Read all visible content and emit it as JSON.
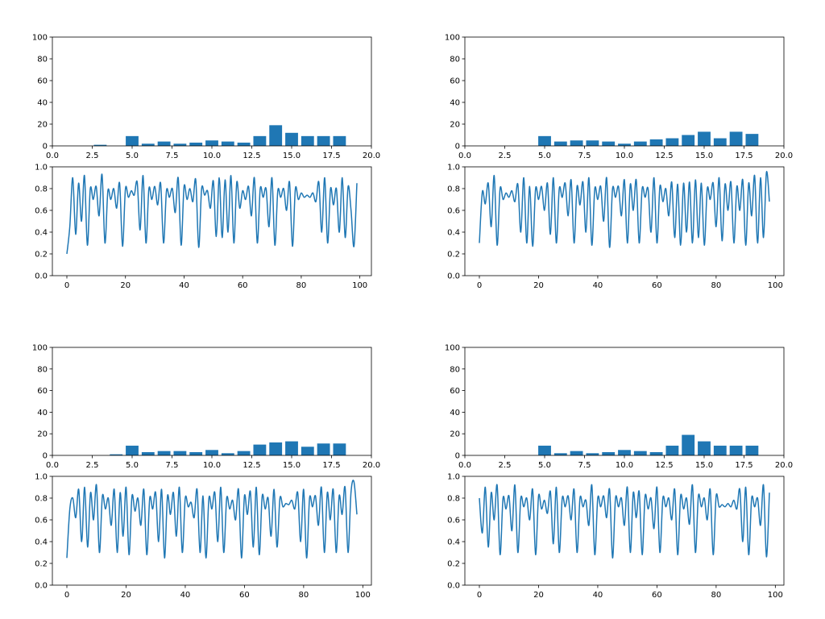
{
  "chart_data": [
    {
      "type": "bar",
      "panel": "top-left-bar",
      "categories": [
        3,
        5,
        6,
        7,
        8,
        9,
        10,
        11,
        12,
        13,
        14,
        15,
        16,
        17,
        18
      ],
      "values": [
        1,
        9,
        2,
        4,
        2,
        3,
        5,
        4,
        3,
        9,
        19,
        12,
        9,
        9,
        9
      ],
      "xlim": [
        0,
        20
      ],
      "ylim": [
        0,
        100
      ],
      "xticks": [
        "0.0",
        "2.5",
        "5.0",
        "7.5",
        "10.0",
        "12.5",
        "15.0",
        "17.5",
        "20.0"
      ],
      "yticks": [
        "0",
        "20",
        "40",
        "60",
        "80",
        "100"
      ],
      "color": "#1f77b4"
    },
    {
      "type": "line",
      "panel": "top-left-line",
      "values": [
        0.2,
        0.45,
        0.9,
        0.38,
        0.85,
        0.5,
        0.92,
        0.28,
        0.8,
        0.7,
        0.82,
        0.55,
        0.93,
        0.3,
        0.78,
        0.7,
        0.8,
        0.62,
        0.85,
        0.27,
        0.8,
        0.72,
        0.78,
        0.74,
        0.86,
        0.42,
        0.92,
        0.3,
        0.8,
        0.7,
        0.82,
        0.65,
        0.85,
        0.3,
        0.78,
        0.72,
        0.8,
        0.58,
        0.9,
        0.28,
        0.82,
        0.7,
        0.8,
        0.68,
        0.88,
        0.26,
        0.8,
        0.74,
        0.78,
        0.62,
        0.87,
        0.36,
        0.9,
        0.35,
        0.88,
        0.4,
        0.92,
        0.3,
        0.86,
        0.62,
        0.78,
        0.7,
        0.82,
        0.55,
        0.9,
        0.3,
        0.8,
        0.72,
        0.8,
        0.45,
        0.9,
        0.28,
        0.78,
        0.72,
        0.8,
        0.6,
        0.86,
        0.27,
        0.8,
        0.7,
        0.76,
        0.72,
        0.74,
        0.72,
        0.76,
        0.68,
        0.86,
        0.4,
        0.9,
        0.3,
        0.8,
        0.65,
        0.8,
        0.4,
        0.9,
        0.35,
        0.82,
        0.6,
        0.27,
        0.85
      ],
      "ylim": [
        0,
        1
      ],
      "xticks": [
        "0",
        "20",
        "40",
        "60",
        "80",
        "100"
      ],
      "yticks": [
        "0.0",
        "0.2",
        "0.4",
        "0.6",
        "0.8",
        "1.0"
      ],
      "color": "#1f77b4"
    },
    {
      "type": "bar",
      "panel": "top-right-bar",
      "categories": [
        5,
        6,
        7,
        8,
        9,
        10,
        11,
        12,
        13,
        14,
        15,
        16,
        17,
        18
      ],
      "values": [
        9,
        4,
        5,
        5,
        4,
        2,
        4,
        6,
        7,
        10,
        13,
        7,
        13,
        11
      ],
      "xlim": [
        0,
        20
      ],
      "ylim": [
        0,
        100
      ],
      "xticks": [
        "0.0",
        "2.5",
        "5.0",
        "7.5",
        "10.0",
        "12.5",
        "15.0",
        "17.5",
        "20.0"
      ],
      "yticks": [
        "0",
        "20",
        "40",
        "60",
        "80",
        "100"
      ],
      "color": "#1f77b4"
    },
    {
      "type": "line",
      "panel": "top-right-line",
      "values": [
        0.3,
        0.77,
        0.66,
        0.85,
        0.45,
        0.92,
        0.28,
        0.8,
        0.7,
        0.76,
        0.72,
        0.78,
        0.68,
        0.84,
        0.4,
        0.9,
        0.3,
        0.82,
        0.27,
        0.8,
        0.7,
        0.82,
        0.6,
        0.85,
        0.38,
        0.9,
        0.3,
        0.8,
        0.72,
        0.85,
        0.55,
        0.88,
        0.3,
        0.82,
        0.65,
        0.86,
        0.4,
        0.9,
        0.28,
        0.8,
        0.7,
        0.82,
        0.5,
        0.9,
        0.26,
        0.8,
        0.72,
        0.82,
        0.55,
        0.88,
        0.3,
        0.84,
        0.6,
        0.88,
        0.3,
        0.8,
        0.72,
        0.8,
        0.4,
        0.9,
        0.3,
        0.82,
        0.68,
        0.8,
        0.55,
        0.86,
        0.35,
        0.84,
        0.28,
        0.85,
        0.4,
        0.86,
        0.3,
        0.88,
        0.35,
        0.85,
        0.28,
        0.8,
        0.7,
        0.85,
        0.45,
        0.9,
        0.32,
        0.84,
        0.6,
        0.86,
        0.3,
        0.82,
        0.6,
        0.88,
        0.28,
        0.85,
        0.55,
        0.92,
        0.3,
        0.9,
        0.35,
        0.95,
        0.68
      ],
      "ylim": [
        0,
        1
      ],
      "xticks": [
        "0",
        "20",
        "40",
        "60",
        "80",
        "100"
      ],
      "yticks": [
        "0.0",
        "0.2",
        "0.4",
        "0.6",
        "0.8",
        "1.0"
      ],
      "color": "#1f77b4"
    },
    {
      "type": "bar",
      "panel": "bottom-left-bar",
      "categories": [
        4,
        5,
        6,
        7,
        8,
        9,
        10,
        11,
        12,
        13,
        14,
        15,
        16,
        17,
        18
      ],
      "values": [
        1,
        9,
        3,
        4,
        4,
        3,
        5,
        2,
        4,
        10,
        12,
        13,
        8,
        11,
        11
      ],
      "xlim": [
        0,
        20
      ],
      "ylim": [
        0,
        100
      ],
      "xticks": [
        "0.0",
        "2.5",
        "5.0",
        "7.5",
        "10.0",
        "12.5",
        "15.0",
        "17.5",
        "20.0"
      ],
      "yticks": [
        "0",
        "20",
        "40",
        "60",
        "80",
        "100"
      ],
      "color": "#1f77b4"
    },
    {
      "type": "line",
      "panel": "bottom-left-line",
      "values": [
        0.25,
        0.7,
        0.8,
        0.62,
        0.88,
        0.4,
        0.9,
        0.35,
        0.85,
        0.6,
        0.92,
        0.3,
        0.82,
        0.7,
        0.8,
        0.55,
        0.88,
        0.3,
        0.85,
        0.45,
        0.9,
        0.28,
        0.82,
        0.68,
        0.8,
        0.55,
        0.88,
        0.28,
        0.8,
        0.7,
        0.85,
        0.4,
        0.88,
        0.25,
        0.82,
        0.65,
        0.85,
        0.45,
        0.9,
        0.3,
        0.8,
        0.72,
        0.76,
        0.62,
        0.88,
        0.3,
        0.82,
        0.25,
        0.8,
        0.7,
        0.85,
        0.4,
        0.9,
        0.3,
        0.8,
        0.7,
        0.78,
        0.6,
        0.88,
        0.25,
        0.82,
        0.65,
        0.86,
        0.35,
        0.9,
        0.28,
        0.82,
        0.7,
        0.8,
        0.45,
        0.88,
        0.35,
        0.8,
        0.72,
        0.75,
        0.74,
        0.78,
        0.7,
        0.85,
        0.4,
        0.88,
        0.25,
        0.8,
        0.72,
        0.82,
        0.55,
        0.9,
        0.3,
        0.85,
        0.6,
        0.88,
        0.3,
        0.82,
        0.65,
        0.9,
        0.3,
        0.85,
        0.95,
        0.65
      ],
      "ylim": [
        0,
        1
      ],
      "xticks": [
        "0",
        "20",
        "40",
        "60",
        "80",
        "100"
      ],
      "yticks": [
        "0.0",
        "0.2",
        "0.4",
        "0.6",
        "0.8",
        "1.0"
      ],
      "color": "#1f77b4"
    },
    {
      "type": "bar",
      "panel": "bottom-right-bar",
      "categories": [
        5,
        6,
        7,
        8,
        9,
        10,
        11,
        12,
        13,
        14,
        15,
        16,
        17,
        18
      ],
      "values": [
        9,
        2,
        4,
        2,
        3,
        5,
        4,
        3,
        9,
        19,
        13,
        9,
        9,
        9
      ],
      "xlim": [
        0,
        20
      ],
      "ylim": [
        0,
        100
      ],
      "xticks": [
        "0.0",
        "2.5",
        "5.0",
        "7.5",
        "10.0",
        "12.5",
        "15.0",
        "17.5",
        "20.0"
      ],
      "yticks": [
        "0",
        "20",
        "40",
        "60",
        "80",
        "100"
      ],
      "color": "#1f77b4"
    },
    {
      "type": "line",
      "panel": "bottom-right-line",
      "values": [
        0.8,
        0.48,
        0.9,
        0.35,
        0.85,
        0.6,
        0.92,
        0.28,
        0.8,
        0.7,
        0.82,
        0.5,
        0.92,
        0.3,
        0.8,
        0.72,
        0.8,
        0.6,
        0.88,
        0.28,
        0.82,
        0.7,
        0.78,
        0.66,
        0.86,
        0.38,
        0.9,
        0.3,
        0.8,
        0.72,
        0.82,
        0.6,
        0.88,
        0.3,
        0.8,
        0.72,
        0.78,
        0.55,
        0.92,
        0.28,
        0.8,
        0.72,
        0.82,
        0.62,
        0.88,
        0.25,
        0.8,
        0.72,
        0.8,
        0.55,
        0.9,
        0.3,
        0.85,
        0.62,
        0.86,
        0.28,
        0.82,
        0.7,
        0.8,
        0.52,
        0.9,
        0.3,
        0.8,
        0.72,
        0.8,
        0.6,
        0.88,
        0.28,
        0.82,
        0.7,
        0.8,
        0.56,
        0.92,
        0.3,
        0.82,
        0.72,
        0.8,
        0.6,
        0.88,
        0.28,
        0.82,
        0.72,
        0.74,
        0.72,
        0.75,
        0.72,
        0.78,
        0.7,
        0.88,
        0.4,
        0.9,
        0.28,
        0.8,
        0.72,
        0.8,
        0.55,
        0.92,
        0.26,
        0.85
      ],
      "ylim": [
        0,
        1
      ],
      "xticks": [
        "0",
        "20",
        "40",
        "60",
        "80",
        "100"
      ],
      "yticks": [
        "0.0",
        "0.2",
        "0.4",
        "0.6",
        "0.8",
        "1.0"
      ],
      "color": "#1f77b4"
    }
  ]
}
